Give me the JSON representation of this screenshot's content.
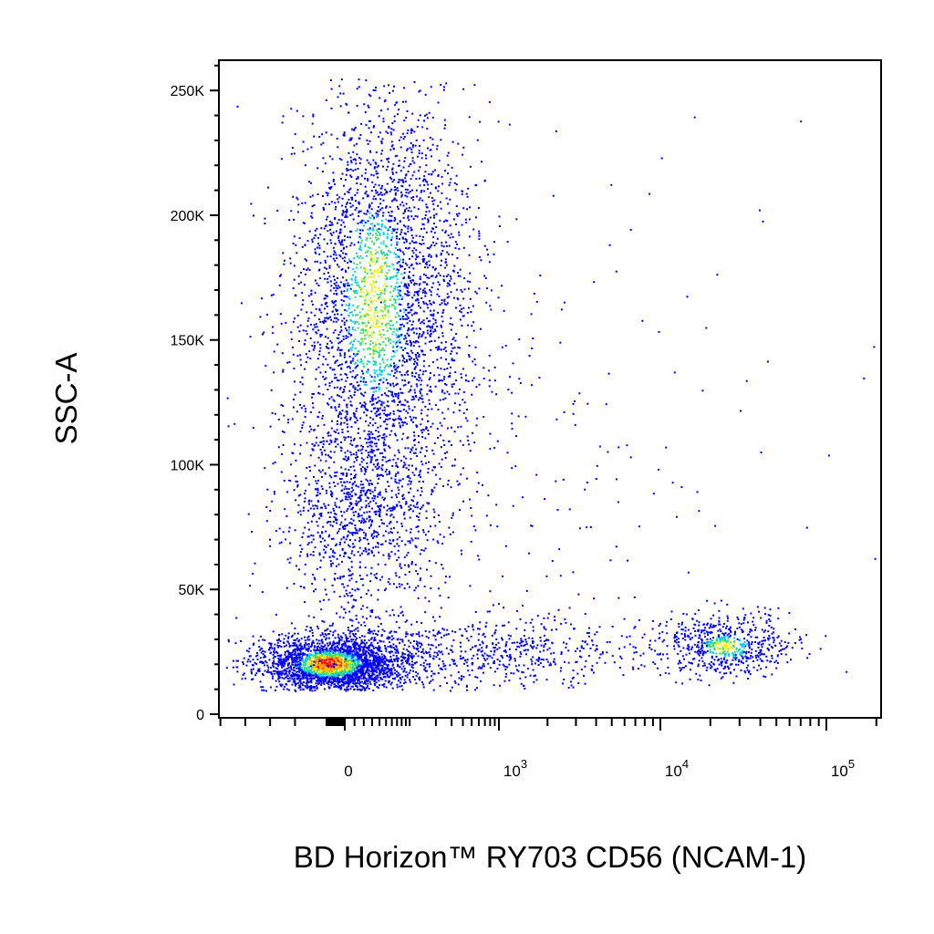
{
  "chart_data": {
    "type": "scatter",
    "subtype": "flow-cytometry density dot plot",
    "title": "",
    "xlabel": "BD Horizon™ RY703 CD56 (NCAM-1)",
    "ylabel": "SSC-A",
    "x_scale": "biexponential (logicle)",
    "y_scale": "linear",
    "ylim": [
      0,
      262144
    ],
    "xlim": [
      -400,
      200000
    ],
    "y_ticks": [
      {
        "value": 0,
        "label": "0"
      },
      {
        "value": 50000,
        "label": "50K"
      },
      {
        "value": 100000,
        "label": "100K"
      },
      {
        "value": 150000,
        "label": "150K"
      },
      {
        "value": 200000,
        "label": "200K"
      },
      {
        "value": 250000,
        "label": "250K"
      }
    ],
    "x_ticks": [
      {
        "value": 0,
        "label": "0"
      },
      {
        "value": 1000,
        "label": "10",
        "exponent": "3"
      },
      {
        "value": 10000,
        "label": "10",
        "exponent": "4"
      },
      {
        "value": 100000,
        "label": "10",
        "exponent": "5"
      }
    ],
    "color_scale": [
      "#0000ff",
      "#00ccff",
      "#33dd66",
      "#ffee00",
      "#ff8800",
      "#ff0000"
    ],
    "populations": [
      {
        "x_center": -30,
        "y_center": 22000,
        "note": "CD56-negative low-SSC cluster (highest density)"
      },
      {
        "x_center": 80,
        "y_center": 160000,
        "note": "CD56-negative high-SSC cluster"
      },
      {
        "x_center": 20000,
        "y_center": 28000,
        "note": "CD56-positive cluster"
      }
    ],
    "grid": false,
    "legend": "none"
  }
}
